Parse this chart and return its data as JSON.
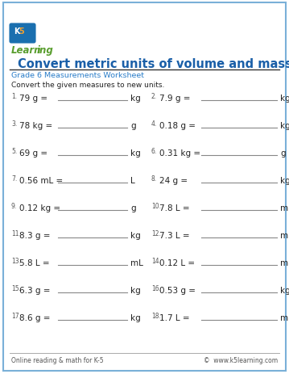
{
  "title": "Convert metric units of volume and mass",
  "subtitle": "Grade 6 Measurements Worksheet",
  "instruction": "Convert the given measures to new units.",
  "footer_left": "Online reading & math for K-5",
  "footer_right": "©  www.k5learning.com",
  "title_color": "#1a5fa8",
  "subtitle_color": "#2a7dc9",
  "text_color": "#222222",
  "border_color": "#7ab0d8",
  "bg_color": "#ffffff",
  "footer_color": "#555555",
  "logo_green": "#5a9e2f",
  "logo_blue": "#1a6faf",
  "logo_orange": "#e07020",
  "problems": [
    {
      "num": "1",
      "left": "79 g =",
      "right_unit": "kg"
    },
    {
      "num": "2",
      "left": "7.9 g =",
      "right_unit": "kg"
    },
    {
      "num": "3",
      "left": "78 kg =",
      "right_unit": "g"
    },
    {
      "num": "4",
      "left": "0.18 g =",
      "right_unit": "kg"
    },
    {
      "num": "5",
      "left": "69 g =",
      "right_unit": "kg"
    },
    {
      "num": "6",
      "left": "0.31 kg =",
      "right_unit": "g"
    },
    {
      "num": "7",
      "left": "0.56 mL =",
      "right_unit": "L"
    },
    {
      "num": "8",
      "left": "24 g =",
      "right_unit": "kg"
    },
    {
      "num": "9",
      "left": "0.12 kg =",
      "right_unit": "g"
    },
    {
      "num": "10",
      "left": "7.8 L =",
      "right_unit": "mL"
    },
    {
      "num": "11",
      "left": "8.3 g =",
      "right_unit": "kg"
    },
    {
      "num": "12",
      "left": "7.3 L =",
      "right_unit": "mL"
    },
    {
      "num": "13",
      "left": "5.8 L =",
      "right_unit": "mL"
    },
    {
      "num": "14",
      "left": "0.12 L =",
      "right_unit": "mL"
    },
    {
      "num": "15",
      "left": "6.3 g =",
      "right_unit": "kg"
    },
    {
      "num": "16",
      "left": "0.53 g =",
      "right_unit": "kg"
    },
    {
      "num": "17",
      "left": "8.6 g =",
      "right_unit": "kg"
    },
    {
      "num": "18",
      "left": "1.7 L =",
      "right_unit": "mL"
    }
  ]
}
